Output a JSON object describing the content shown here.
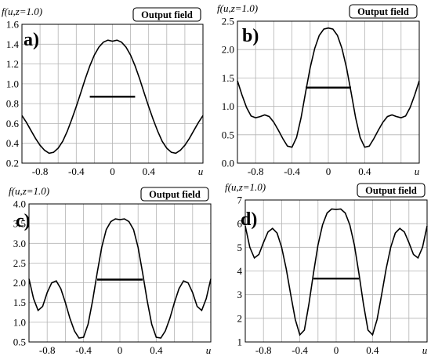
{
  "chart_data": [
    {
      "type": "line",
      "panel_label": "a)",
      "badge": "Output field",
      "ylabel": "f(u,z=1.0)",
      "xlabel": "u",
      "xlim": [
        -1.0,
        1.0
      ],
      "ylim": [
        0.2,
        1.6
      ],
      "xticks": [
        -0.8,
        -0.4,
        0,
        0.4
      ],
      "xtick_labels": [
        "-0.8",
        "-0.4",
        "0",
        "0.4"
      ],
      "yticks": [
        0.2,
        0.4,
        0.6,
        0.8,
        1.0,
        1.2,
        1.4,
        1.6
      ],
      "ytick_labels": [
        "0.2",
        "0.4",
        "0.6",
        "0.8",
        "1.0",
        "1.2",
        "1.4",
        "1.6"
      ],
      "grid": true,
      "curve": {
        "x": [
          -1.0,
          -0.95,
          -0.9,
          -0.85,
          -0.8,
          -0.75,
          -0.7,
          -0.65,
          -0.6,
          -0.55,
          -0.5,
          -0.45,
          -0.4,
          -0.35,
          -0.3,
          -0.25,
          -0.2,
          -0.15,
          -0.1,
          -0.05,
          0.0,
          0.05,
          0.1,
          0.15,
          0.2,
          0.25,
          0.3,
          0.35,
          0.4,
          0.45,
          0.5,
          0.55,
          0.6,
          0.65,
          0.7,
          0.75,
          0.8,
          0.85,
          0.9,
          0.95,
          1.0
        ],
        "y": [
          0.68,
          0.61,
          0.53,
          0.45,
          0.38,
          0.33,
          0.3,
          0.31,
          0.35,
          0.42,
          0.52,
          0.64,
          0.77,
          0.91,
          1.05,
          1.18,
          1.29,
          1.37,
          1.42,
          1.44,
          1.43,
          1.44,
          1.42,
          1.37,
          1.29,
          1.18,
          1.05,
          0.91,
          0.77,
          0.64,
          0.52,
          0.42,
          0.35,
          0.31,
          0.3,
          0.33,
          0.38,
          0.45,
          0.53,
          0.61,
          0.68
        ]
      },
      "level_segment": {
        "x": [
          -0.25,
          0.25
        ],
        "y": 0.87
      }
    },
    {
      "type": "line",
      "panel_label": "b)",
      "badge": "Output field",
      "ylabel": "f(u,z=1.0)",
      "xlabel": "u",
      "xlim": [
        -1.0,
        1.0
      ],
      "ylim": [
        0.0,
        2.5
      ],
      "xticks": [
        -0.8,
        -0.4,
        0,
        0.4
      ],
      "xtick_labels": [
        "-0.8",
        "-0.4",
        "0",
        "0.4"
      ],
      "yticks": [
        0.0,
        0.5,
        1.0,
        1.5,
        2.0,
        2.5
      ],
      "ytick_labels": [
        "0.0",
        "0.5",
        "1.0",
        "1.5",
        "2.0",
        "2.5"
      ],
      "grid": true,
      "curve": {
        "x": [
          -1.0,
          -0.95,
          -0.9,
          -0.85,
          -0.8,
          -0.75,
          -0.7,
          -0.65,
          -0.6,
          -0.55,
          -0.5,
          -0.45,
          -0.4,
          -0.35,
          -0.3,
          -0.25,
          -0.2,
          -0.15,
          -0.1,
          -0.05,
          0.0,
          0.05,
          0.1,
          0.15,
          0.2,
          0.25,
          0.3,
          0.35,
          0.4,
          0.45,
          0.5,
          0.55,
          0.6,
          0.65,
          0.7,
          0.75,
          0.8,
          0.85,
          0.9,
          0.95,
          1.0
        ],
        "y": [
          1.45,
          1.2,
          0.98,
          0.83,
          0.8,
          0.82,
          0.85,
          0.82,
          0.72,
          0.58,
          0.43,
          0.3,
          0.28,
          0.45,
          0.8,
          1.25,
          1.68,
          2.02,
          2.25,
          2.36,
          2.38,
          2.36,
          2.25,
          2.02,
          1.68,
          1.25,
          0.8,
          0.45,
          0.28,
          0.3,
          0.43,
          0.58,
          0.72,
          0.82,
          0.85,
          0.82,
          0.8,
          0.83,
          0.98,
          1.2,
          1.45
        ]
      },
      "level_segment": {
        "x": [
          -0.25,
          0.25
        ],
        "y": 1.33
      }
    },
    {
      "type": "line",
      "panel_label": "c)",
      "badge": "Output field",
      "ylabel": "f(u,z=1.0)",
      "xlabel": "u",
      "xlim": [
        -1.0,
        1.0
      ],
      "ylim": [
        0.5,
        4.0
      ],
      "xticks": [
        -0.8,
        -0.4,
        0,
        0.4
      ],
      "xtick_labels": [
        "-0.8",
        "-0.4",
        "0",
        "0.4"
      ],
      "yticks": [
        0.5,
        1.0,
        1.5,
        2.0,
        2.5,
        3.0,
        3.5,
        4.0
      ],
      "ytick_labels": [
        "0.5",
        "1.0",
        "1.5",
        "2.0",
        "2.5",
        "3.0",
        "3.5",
        "4.0"
      ],
      "grid": true,
      "curve": {
        "x": [
          -1.0,
          -0.95,
          -0.9,
          -0.85,
          -0.8,
          -0.75,
          -0.7,
          -0.65,
          -0.6,
          -0.55,
          -0.5,
          -0.45,
          -0.4,
          -0.35,
          -0.3,
          -0.25,
          -0.2,
          -0.15,
          -0.1,
          -0.05,
          0.0,
          0.05,
          0.1,
          0.15,
          0.2,
          0.25,
          0.3,
          0.35,
          0.4,
          0.45,
          0.5,
          0.55,
          0.6,
          0.65,
          0.7,
          0.75,
          0.8,
          0.85,
          0.9,
          0.95,
          1.0
        ],
        "y": [
          2.1,
          1.6,
          1.3,
          1.4,
          1.75,
          2.0,
          2.05,
          1.85,
          1.5,
          1.1,
          0.78,
          0.6,
          0.62,
          0.95,
          1.55,
          2.25,
          2.9,
          3.35,
          3.55,
          3.62,
          3.6,
          3.62,
          3.55,
          3.35,
          2.9,
          2.25,
          1.55,
          0.95,
          0.62,
          0.6,
          0.78,
          1.1,
          1.5,
          1.85,
          2.05,
          2.0,
          1.75,
          1.4,
          1.3,
          1.6,
          2.1
        ]
      },
      "level_segment": {
        "x": [
          -0.25,
          0.25
        ],
        "y": 2.08
      }
    },
    {
      "type": "line",
      "panel_label": "d)",
      "badge": "Output field",
      "ylabel": "f(u,z=1.0)",
      "xlabel": "u",
      "xlim": [
        -1.0,
        1.0
      ],
      "ylim": [
        1,
        7
      ],
      "xticks": [
        -0.8,
        -0.4,
        0,
        0.4
      ],
      "xtick_labels": [
        "-0.8",
        "-0.4",
        "0",
        "0.4"
      ],
      "yticks": [
        1,
        2,
        3,
        4,
        5,
        6,
        7
      ],
      "ytick_labels": [
        "1",
        "2",
        "3",
        "4",
        "5",
        "6",
        "7"
      ],
      "grid": true,
      "curve": {
        "x": [
          -1.0,
          -0.95,
          -0.9,
          -0.85,
          -0.8,
          -0.75,
          -0.7,
          -0.65,
          -0.6,
          -0.55,
          -0.5,
          -0.45,
          -0.4,
          -0.35,
          -0.3,
          -0.25,
          -0.2,
          -0.15,
          -0.1,
          -0.05,
          0.0,
          0.05,
          0.1,
          0.15,
          0.2,
          0.25,
          0.3,
          0.35,
          0.4,
          0.45,
          0.5,
          0.55,
          0.6,
          0.65,
          0.7,
          0.75,
          0.8,
          0.85,
          0.9,
          0.95,
          1.0
        ],
        "y": [
          5.9,
          5.0,
          4.55,
          4.7,
          5.2,
          5.65,
          5.8,
          5.6,
          5.0,
          4.1,
          3.0,
          1.95,
          1.3,
          1.5,
          2.6,
          3.9,
          5.1,
          5.95,
          6.45,
          6.62,
          6.6,
          6.62,
          6.45,
          5.95,
          5.1,
          3.9,
          2.6,
          1.5,
          1.3,
          1.95,
          3.0,
          4.1,
          5.0,
          5.6,
          5.8,
          5.65,
          5.2,
          4.7,
          4.55,
          5.0,
          5.9
        ]
      },
      "level_segment": {
        "x": [
          -0.25,
          0.25
        ],
        "y": 3.68
      }
    }
  ]
}
